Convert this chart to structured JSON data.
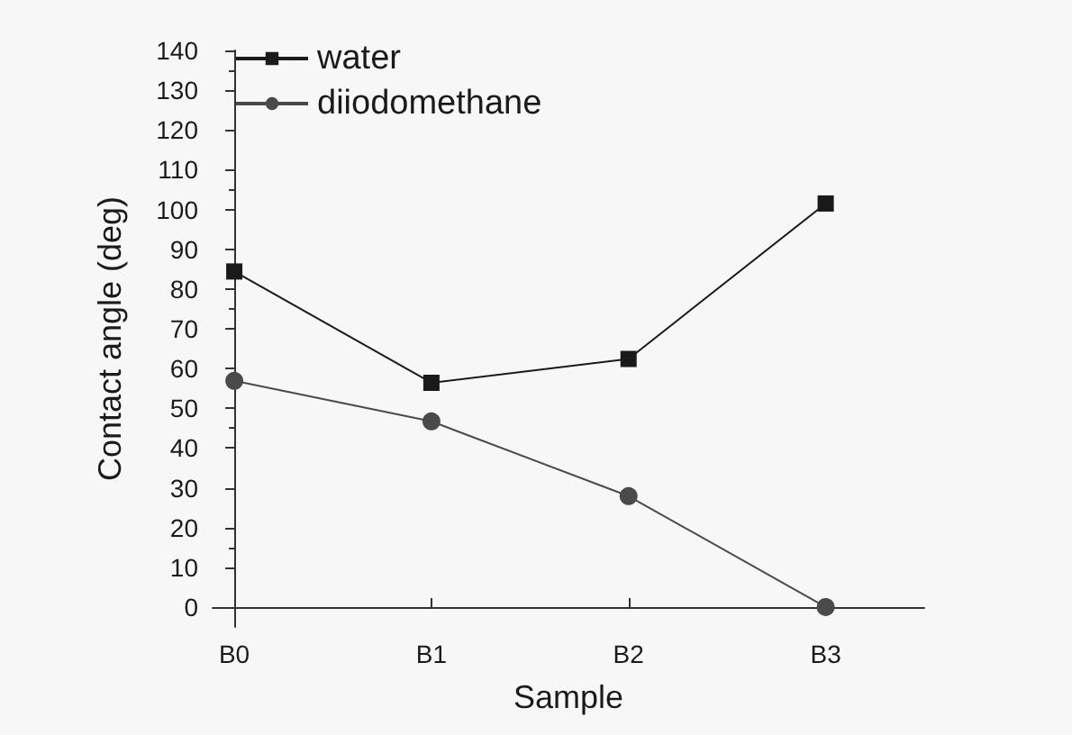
{
  "chart_data": {
    "type": "line",
    "xlabel": "Sample",
    "ylabel": "Contact angle (deg)",
    "categories": [
      "B0",
      "B1",
      "B2",
      "B3"
    ],
    "series": [
      {
        "name": "water",
        "color": "#1a1a1a",
        "marker": "square",
        "values": [
          84.4,
          56.4,
          62.4,
          101.5
        ]
      },
      {
        "name": "diiodomethane",
        "color": "#4a4a4a",
        "marker": "circle",
        "values": [
          56.9,
          46.7,
          27.9,
          0
        ]
      }
    ],
    "ylim": [
      -5,
      140
    ],
    "yticks": [
      0,
      10,
      20,
      30,
      40,
      50,
      60,
      70,
      80,
      90,
      100,
      110,
      120,
      130,
      140
    ],
    "grid": false,
    "legend": "top left",
    "line_style": "solid"
  }
}
